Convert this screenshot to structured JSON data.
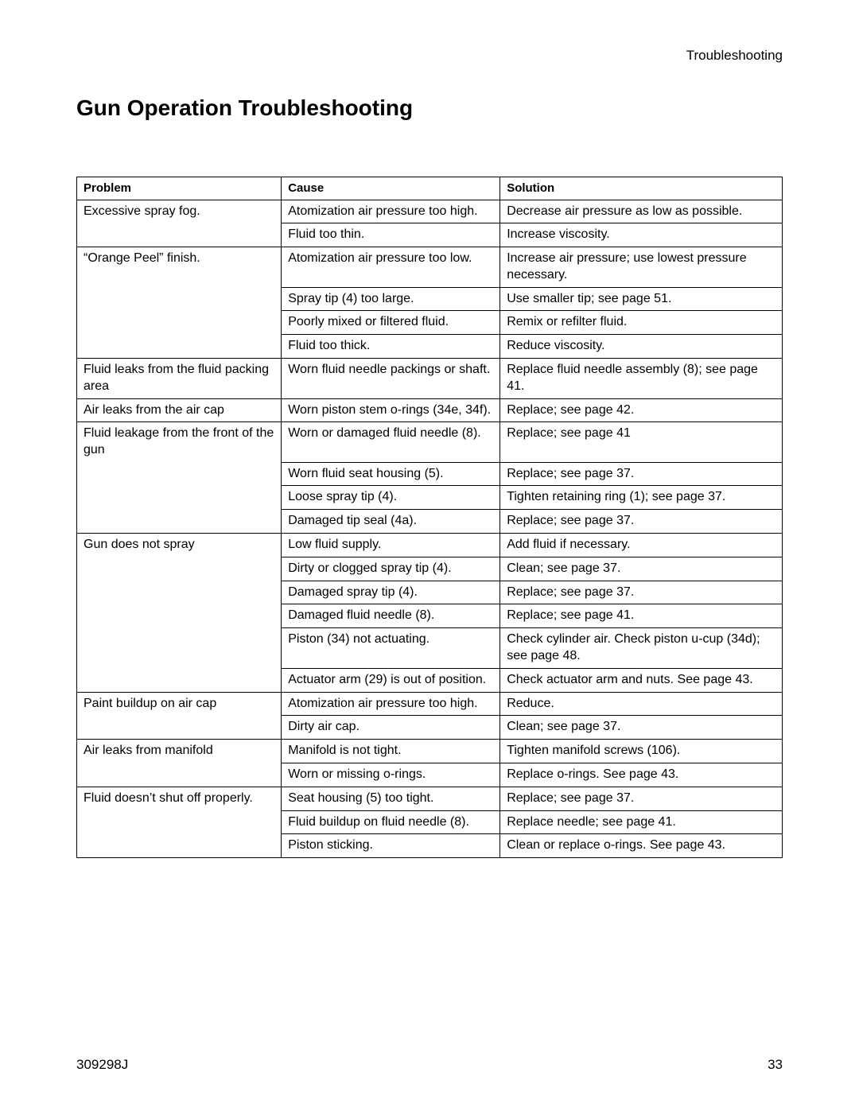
{
  "header": {
    "section": "Troubleshooting"
  },
  "title": "Gun Operation Troubleshooting",
  "table": {
    "headers": {
      "problem": "Problem",
      "cause": "Cause",
      "solution": "Solution"
    },
    "groups": [
      {
        "problem": "Excessive spray fog.",
        "rows": [
          {
            "cause": "Atomization air pressure too high.",
            "solution": "Decrease air pressure as low as possible."
          },
          {
            "cause": "Fluid too thin.",
            "solution": "Increase viscosity."
          }
        ]
      },
      {
        "problem": "“Orange Peel” finish.",
        "rows": [
          {
            "cause": "Atomization air pressure too low.",
            "solution": "Increase air pressure; use lowest pressure necessary."
          },
          {
            "cause": "Spray tip (4) too large.",
            "solution": "Use smaller tip; see page 51."
          },
          {
            "cause": "Poorly mixed or filtered fluid.",
            "solution": "Remix or refilter fluid."
          },
          {
            "cause": "Fluid too thick.",
            "solution": "Reduce viscosity."
          }
        ]
      },
      {
        "problem": "Fluid leaks from the fluid packing area",
        "rows": [
          {
            "cause": "Worn fluid needle packings or shaft.",
            "solution": "Replace fluid needle assembly (8); see page 41."
          }
        ]
      },
      {
        "problem": "Air leaks from the air cap",
        "rows": [
          {
            "cause": "Worn piston stem o-rings (34e, 34f).",
            "solution": "Replace; see page 42."
          }
        ]
      },
      {
        "problem": "Fluid leakage from the front of the gun",
        "rows": [
          {
            "cause": "Worn or damaged fluid needle (8).",
            "solution": "Replace; see page 41"
          },
          {
            "cause": "Worn fluid seat housing (5).",
            "solution": "Replace; see page 37."
          },
          {
            "cause": "Loose spray tip (4).",
            "solution": "Tighten retaining ring (1); see page 37."
          },
          {
            "cause": "Damaged tip seal (4a).",
            "solution": "Replace; see page 37."
          }
        ]
      },
      {
        "problem": "Gun does not spray",
        "rows": [
          {
            "cause": "Low fluid supply.",
            "solution": "Add fluid if necessary."
          },
          {
            "cause": "Dirty or clogged spray tip (4).",
            "solution": "Clean; see page 37."
          },
          {
            "cause": "Damaged spray tip (4).",
            "solution": "Replace; see page 37."
          },
          {
            "cause": "Damaged fluid needle (8).",
            "solution": "Replace; see page 41."
          },
          {
            "cause": "Piston (34) not actuating.",
            "solution": "Check cylinder air. Check piston u-cup (34d); see page 48."
          },
          {
            "cause": "Actuator arm (29) is out of position.",
            "solution": "Check actuator arm and nuts. See page 43."
          }
        ]
      },
      {
        "problem": "Paint buildup on air cap",
        "rows": [
          {
            "cause": "Atomization air pressure too high.",
            "solution": "Reduce."
          },
          {
            "cause": "Dirty air cap.",
            "solution": "Clean; see page 37."
          }
        ]
      },
      {
        "problem": "Air leaks from manifold",
        "rows": [
          {
            "cause": "Manifold is not tight.",
            "solution": "Tighten manifold screws (106)."
          },
          {
            "cause": "Worn or missing o-rings.",
            "solution": "Replace o-rings. See page 43."
          }
        ]
      },
      {
        "problem": "Fluid doesn’t shut off properly.",
        "rows": [
          {
            "cause": "Seat housing (5) too tight.",
            "solution": "Replace; see page 37."
          },
          {
            "cause": "Fluid buildup on fluid needle (8).",
            "solution": "Replace needle; see page 41."
          },
          {
            "cause": "Piston sticking.",
            "solution": "Clean or replace o-rings. See page 43."
          }
        ]
      }
    ]
  },
  "footer": {
    "doc_id": "309298J",
    "page_number": "33"
  }
}
